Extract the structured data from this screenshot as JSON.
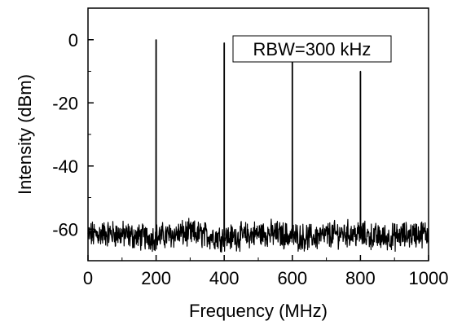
{
  "chart_data": {
    "type": "line",
    "xlabel": "Frequency (MHz)",
    "ylabel": "Intensity (dBm)",
    "xlim": [
      0,
      1000
    ],
    "ylim": [
      -70,
      10
    ],
    "xticks": [
      0,
      200,
      400,
      600,
      800,
      1000
    ],
    "yticks": [
      -60,
      -40,
      -20,
      0
    ],
    "xtick_labels": [
      "0",
      "200",
      "400",
      "600",
      "800",
      "1000"
    ],
    "ytick_labels": [
      "-60",
      "-40",
      "-20",
      "0"
    ],
    "grid": false,
    "annotation": "RBW=300 kHz",
    "series": [
      {
        "color": "#000000",
        "noise_floor_dBm": -62,
        "peaks": [
          {
            "x": 200,
            "y": 0
          },
          {
            "x": 400,
            "y": -1
          },
          {
            "x": 600,
            "y": -7
          },
          {
            "x": 800,
            "y": -10
          }
        ]
      }
    ]
  }
}
